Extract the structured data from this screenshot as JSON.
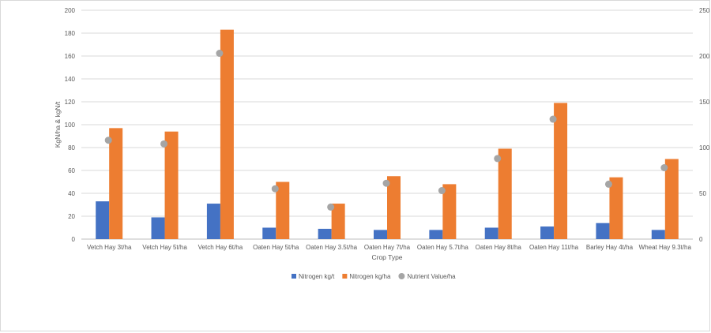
{
  "chart_data": {
    "type": "bar",
    "title": "",
    "xlabel": "Crop Type",
    "ylabel": "KgN/ha & kgN/t",
    "ylim": [
      0,
      200
    ],
    "y_ticks": [
      0,
      20,
      40,
      60,
      80,
      100,
      120,
      140,
      160,
      180,
      200
    ],
    "y2lim": [
      0,
      250
    ],
    "y2_ticks": [
      0,
      50,
      100,
      150,
      200,
      250
    ],
    "grid": true,
    "legend_position": "bottom",
    "categories": [
      "Vetch Hay 3t/ha",
      "Vetch Hay 5t/ha",
      "Vetch Hay 6t/ha",
      "Oaten Hay 5t/ha",
      "Oaten Hay 3.5t/ha",
      "Oaten Hay 7t/ha",
      "Oaten Hay 5.7t/ha",
      "Oaten Hay 8t/ha",
      "Oaten Hay 11t/ha",
      "Barley Hay 4t/ha",
      "Wheat Hay 9.3t/ha"
    ],
    "series": [
      {
        "name": "Nitrogen kg/t",
        "kind": "bar",
        "axis": "left",
        "color": "#4472c4",
        "values": [
          33,
          19,
          31,
          10,
          9,
          8,
          8,
          10,
          11,
          14,
          8
        ]
      },
      {
        "name": "Nitrogen kg/ha",
        "kind": "bar",
        "axis": "left",
        "color": "#ed7d31",
        "values": [
          97,
          94,
          183,
          50,
          31,
          55,
          48,
          79,
          119,
          54,
          70
        ]
      },
      {
        "name": "Nutrient Value/ha",
        "kind": "marker",
        "axis": "right",
        "color": "#a5a5a5",
        "values": [
          108,
          104,
          203,
          55,
          35,
          61,
          53,
          88,
          131,
          60,
          78
        ]
      }
    ]
  }
}
